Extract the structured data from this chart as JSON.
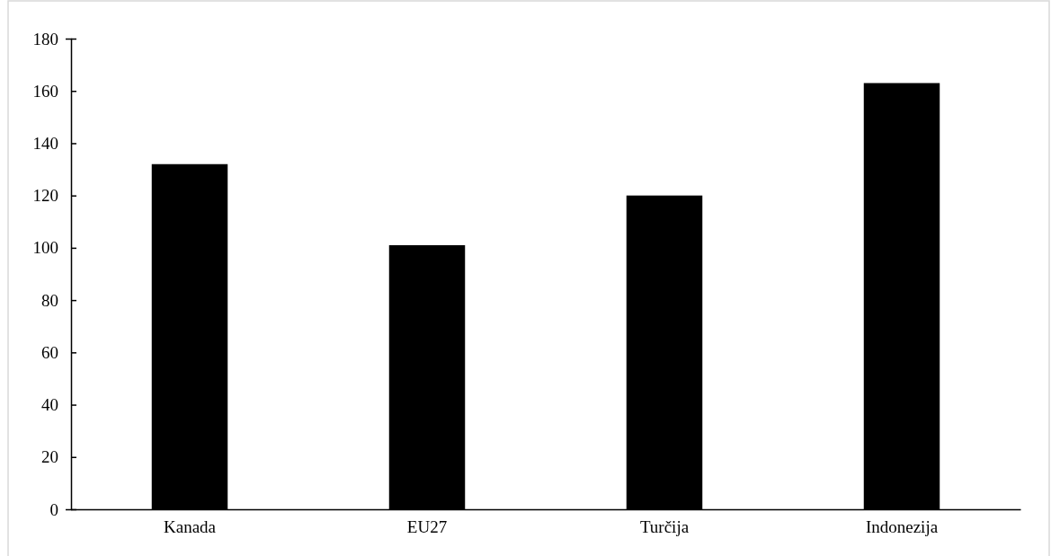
{
  "chart_data": {
    "type": "bar",
    "categories": [
      "Kanada",
      "EU27",
      "Turčija",
      "Indonezija"
    ],
    "values": [
      132,
      101,
      120,
      163
    ],
    "color": "#000000",
    "ylim": [
      0,
      180
    ],
    "yticks": [
      0,
      20,
      40,
      60,
      80,
      100,
      120,
      140,
      160,
      180
    ],
    "grid": false
  }
}
